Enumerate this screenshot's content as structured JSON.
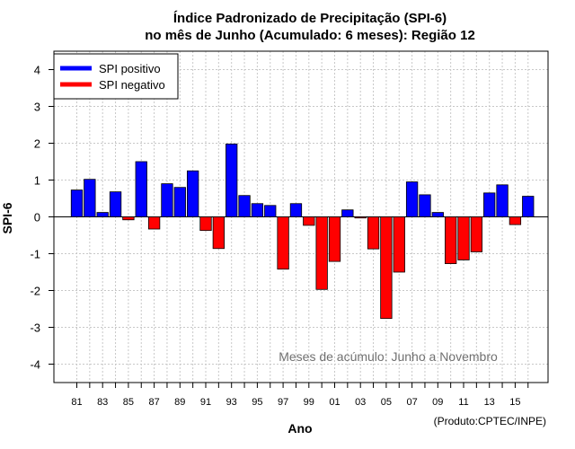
{
  "chart_data": {
    "type": "bar",
    "title": "Índice Padronizado de Precipitação (SPI-6)",
    "subtitle": "no mês de Junho (Acumulado: 6 meses): Região 12",
    "xlabel": "Ano",
    "ylabel": "SPI-6",
    "ylim": [
      -4.5,
      4.5
    ],
    "yticks": [
      -4,
      -3,
      -2,
      -1,
      0,
      1,
      2,
      3,
      4
    ],
    "xtick_labels": [
      "81",
      "83",
      "85",
      "87",
      "89",
      "91",
      "93",
      "95",
      "97",
      "99",
      "01",
      "03",
      "05",
      "07",
      "09",
      "11",
      "13",
      "15"
    ],
    "grid": true,
    "legend_position": "top-left",
    "series": [
      {
        "name": "SPI positivo",
        "color": "#0000ff"
      },
      {
        "name": "SPI negativo",
        "color": "#ff0000"
      }
    ],
    "categories": [
      "1981",
      "1982",
      "1983",
      "1984",
      "1985",
      "1986",
      "1987",
      "1988",
      "1989",
      "1990",
      "1991",
      "1992",
      "1993",
      "1994",
      "1995",
      "1996",
      "1997",
      "1998",
      "1999",
      "2000",
      "2001",
      "2002",
      "2003",
      "2004",
      "2005",
      "2006",
      "2007",
      "2008",
      "2009",
      "2010",
      "2011",
      "2012",
      "2013",
      "2014",
      "2015",
      "2016"
    ],
    "values": [
      0.73,
      1.02,
      0.12,
      0.68,
      -0.08,
      1.5,
      -0.33,
      0.9,
      0.8,
      1.25,
      -0.37,
      -0.86,
      1.98,
      0.58,
      0.36,
      0.31,
      -1.42,
      0.36,
      -0.23,
      -1.97,
      -1.21,
      0.19,
      -0.03,
      -0.87,
      -2.76,
      -1.5,
      0.95,
      0.6,
      0.12,
      -1.27,
      -1.17,
      -0.95,
      0.65,
      0.87,
      -0.21,
      0.56
    ],
    "annotation": "Meses de acúmulo: Junho a Novembro",
    "credit": "(Produto:CPTEC/INPE)"
  }
}
